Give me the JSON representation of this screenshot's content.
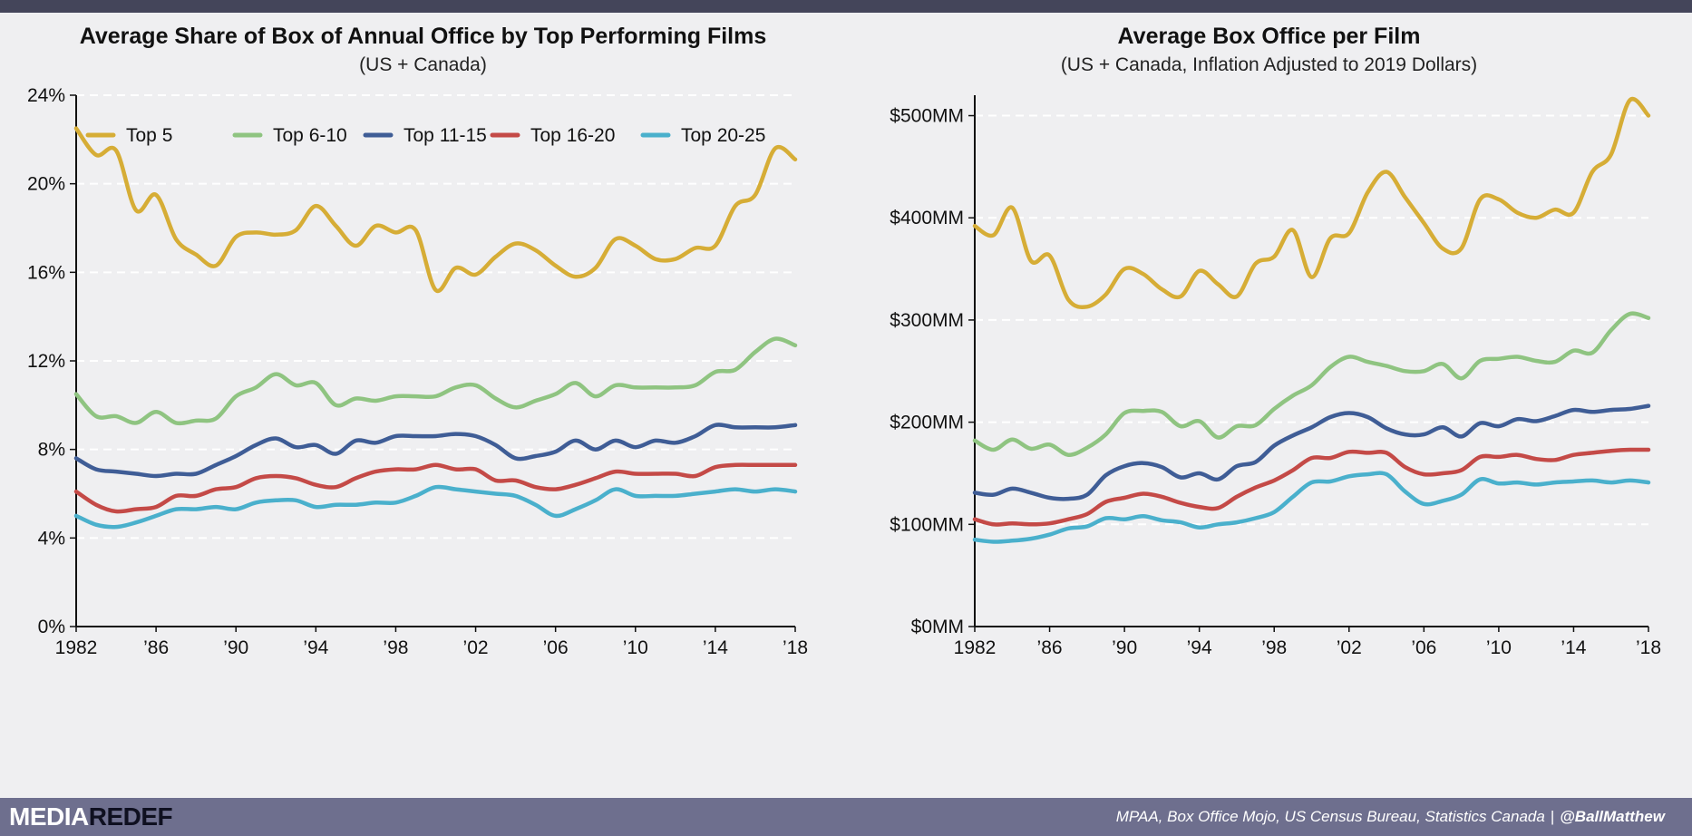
{
  "footer": {
    "brand_part1": "MEDIA",
    "brand_part2": "REDEF",
    "sources": "MPAA, Box Office Mojo, US Census Bureau, Statistics Canada",
    "separator": "|",
    "handle": "@BallMatthew"
  },
  "colors": {
    "top5": "#d6ad36",
    "top6_10": "#8fc481",
    "top11_15": "#3f5d96",
    "top16_20": "#c44a47",
    "top20_25": "#4ab0cc",
    "background": "#efeff1",
    "footer": "#6e6f8e",
    "topbar": "#44455a"
  },
  "chart_data": [
    {
      "type": "line",
      "title": "Average Share of Box of Annual Office by Top Performing Films",
      "subtitle": "(US + Canada)",
      "xlabel": "",
      "ylabel": "",
      "x_tick_labels": [
        "1982",
        "’86",
        "’90",
        "’94",
        "’98",
        "’02",
        "’06",
        "’10",
        "’14",
        "’18"
      ],
      "x_tick_values": [
        1982,
        1986,
        1990,
        1994,
        1998,
        2002,
        2006,
        2010,
        2014,
        2018
      ],
      "xlim": [
        1982,
        2018
      ],
      "y_tick_labels": [
        "0%",
        "4%",
        "8%",
        "12%",
        "16%",
        "20%",
        "24%"
      ],
      "y_tick_values": [
        0,
        4,
        8,
        12,
        16,
        20,
        24
      ],
      "ylim": [
        0,
        24
      ],
      "grid": "horizontal dashed",
      "legend_position": "top",
      "x": [
        1982,
        1983,
        1984,
        1985,
        1986,
        1987,
        1988,
        1989,
        1990,
        1991,
        1992,
        1993,
        1994,
        1995,
        1996,
        1997,
        1998,
        1999,
        2000,
        2001,
        2002,
        2003,
        2004,
        2005,
        2006,
        2007,
        2008,
        2009,
        2010,
        2011,
        2012,
        2013,
        2014,
        2015,
        2016,
        2017,
        2018
      ],
      "series": [
        {
          "name": "Top 5",
          "color_key": "top5",
          "values": [
            22.5,
            21.3,
            21.5,
            18.8,
            19.5,
            17.5,
            16.8,
            16.3,
            17.6,
            17.8,
            17.7,
            17.9,
            19.0,
            18.1,
            17.2,
            18.1,
            17.8,
            17.9,
            15.2,
            16.2,
            15.9,
            16.7,
            17.3,
            17.0,
            16.3,
            15.8,
            16.2,
            17.5,
            17.2,
            16.6,
            16.6,
            17.1,
            17.2,
            19.0,
            19.5,
            21.6,
            21.1
          ]
        },
        {
          "name": "Top 6-10",
          "color_key": "top6_10",
          "values": [
            10.5,
            9.5,
            9.5,
            9.2,
            9.7,
            9.2,
            9.3,
            9.4,
            10.4,
            10.8,
            11.4,
            10.9,
            11.0,
            10.0,
            10.3,
            10.2,
            10.4,
            10.4,
            10.4,
            10.8,
            10.9,
            10.3,
            9.9,
            10.2,
            10.5,
            11.0,
            10.4,
            10.9,
            10.8,
            10.8,
            10.8,
            10.9,
            11.5,
            11.6,
            12.4,
            13.0,
            12.7
          ]
        },
        {
          "name": "Top 11-15",
          "color_key": "top11_15",
          "values": [
            7.6,
            7.1,
            7.0,
            6.9,
            6.8,
            6.9,
            6.9,
            7.3,
            7.7,
            8.2,
            8.5,
            8.1,
            8.2,
            7.8,
            8.4,
            8.3,
            8.6,
            8.6,
            8.6,
            8.7,
            8.6,
            8.2,
            7.6,
            7.7,
            7.9,
            8.4,
            8.0,
            8.4,
            8.1,
            8.4,
            8.3,
            8.6,
            9.1,
            9.0,
            9.0,
            9.0,
            9.1
          ]
        },
        {
          "name": "Top 16-20",
          "color_key": "top16_20",
          "values": [
            6.1,
            5.5,
            5.2,
            5.3,
            5.4,
            5.9,
            5.9,
            6.2,
            6.3,
            6.7,
            6.8,
            6.7,
            6.4,
            6.3,
            6.7,
            7.0,
            7.1,
            7.1,
            7.3,
            7.1,
            7.1,
            6.6,
            6.6,
            6.3,
            6.2,
            6.4,
            6.7,
            7.0,
            6.9,
            6.9,
            6.9,
            6.8,
            7.2,
            7.3,
            7.3,
            7.3,
            7.3
          ]
        },
        {
          "name": "Top 20-25",
          "color_key": "top20_25",
          "values": [
            5.0,
            4.6,
            4.5,
            4.7,
            5.0,
            5.3,
            5.3,
            5.4,
            5.3,
            5.6,
            5.7,
            5.7,
            5.4,
            5.5,
            5.5,
            5.6,
            5.6,
            5.9,
            6.3,
            6.2,
            6.1,
            6.0,
            5.9,
            5.5,
            5.0,
            5.3,
            5.7,
            6.2,
            5.9,
            5.9,
            5.9,
            6.0,
            6.1,
            6.2,
            6.1,
            6.2,
            6.1
          ]
        }
      ]
    },
    {
      "type": "line",
      "title": "Average Box Office per Film",
      "subtitle": "(US + Canada, Inflation Adjusted to 2019 Dollars)",
      "xlabel": "",
      "ylabel": "",
      "x_tick_labels": [
        "1982",
        "’86",
        "’90",
        "’94",
        "’98",
        "’02",
        "’06",
        "’10",
        "’14",
        "’18"
      ],
      "x_tick_values": [
        1982,
        1986,
        1990,
        1994,
        1998,
        2002,
        2006,
        2010,
        2014,
        2018
      ],
      "xlim": [
        1982,
        2018
      ],
      "y_tick_labels": [
        "$0MM",
        "$100MM",
        "$200MM",
        "$300MM",
        "$400MM",
        "$500MM"
      ],
      "y_tick_values": [
        0,
        100,
        200,
        300,
        400,
        500
      ],
      "ylim": [
        0,
        520
      ],
      "grid": "horizontal dashed",
      "legend_position": "none",
      "x": [
        1982,
        1983,
        1984,
        1985,
        1986,
        1987,
        1988,
        1989,
        1990,
        1991,
        1992,
        1993,
        1994,
        1995,
        1996,
        1997,
        1998,
        1999,
        2000,
        2001,
        2002,
        2003,
        2004,
        2005,
        2006,
        2007,
        2008,
        2009,
        2010,
        2011,
        2012,
        2013,
        2014,
        2015,
        2016,
        2017,
        2018
      ],
      "series": [
        {
          "name": "Top 5",
          "color_key": "top5",
          "values": [
            392,
            383,
            410,
            358,
            363,
            320,
            313,
            325,
            350,
            345,
            330,
            323,
            348,
            335,
            323,
            355,
            362,
            388,
            342,
            380,
            385,
            425,
            445,
            420,
            395,
            370,
            370,
            418,
            418,
            405,
            400,
            408,
            405,
            445,
            462,
            515,
            500
          ]
        },
        {
          "name": "Top 6-10",
          "color_key": "top6_10",
          "values": [
            182,
            173,
            183,
            174,
            178,
            168,
            175,
            188,
            209,
            211,
            210,
            196,
            201,
            185,
            196,
            197,
            213,
            226,
            236,
            254,
            264,
            259,
            255,
            250,
            250,
            257,
            243,
            260,
            262,
            264,
            260,
            259,
            270,
            268,
            290,
            306,
            302
          ]
        },
        {
          "name": "Top 11-15",
          "color_key": "top11_15",
          "values": [
            131,
            129,
            135,
            131,
            126,
            125,
            129,
            148,
            157,
            160,
            156,
            146,
            150,
            144,
            157,
            161,
            177,
            187,
            195,
            205,
            209,
            205,
            194,
            188,
            188,
            195,
            186,
            199,
            196,
            203,
            201,
            206,
            212,
            210,
            212,
            213,
            216
          ]
        },
        {
          "name": "Top 16-20",
          "color_key": "top16_20",
          "values": [
            105,
            100,
            101,
            100,
            101,
            105,
            110,
            122,
            126,
            130,
            127,
            121,
            117,
            116,
            127,
            136,
            143,
            153,
            165,
            165,
            171,
            170,
            170,
            156,
            149,
            150,
            153,
            166,
            166,
            168,
            164,
            163,
            168,
            170,
            172,
            173,
            173
          ]
        },
        {
          "name": "Top 20-25",
          "color_key": "top20_25",
          "values": [
            85,
            83,
            84,
            86,
            90,
            96,
            98,
            106,
            105,
            108,
            104,
            102,
            97,
            100,
            102,
            106,
            112,
            127,
            141,
            142,
            147,
            149,
            149,
            132,
            120,
            123,
            129,
            144,
            140,
            141,
            139,
            141,
            142,
            143,
            141,
            143,
            141
          ]
        }
      ]
    }
  ]
}
